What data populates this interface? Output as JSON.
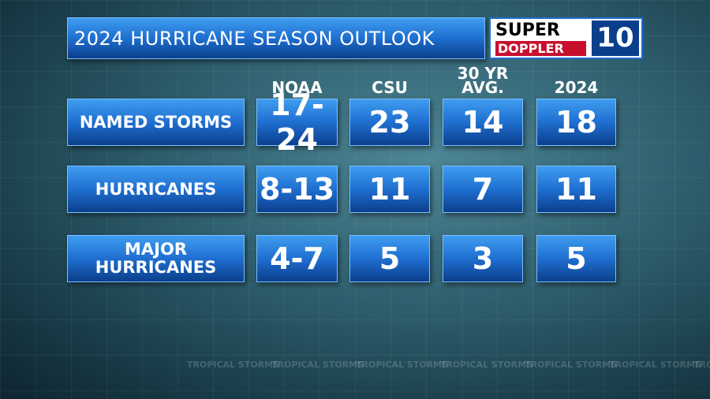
{
  "header": {
    "title": "2024 HURRICANE SEASON OUTLOOK",
    "logo": {
      "line1": "SUPER",
      "line2": "DOPPLER",
      "number": "10"
    }
  },
  "table": {
    "columns": [
      "NOAA",
      "CSU",
      "30 YR AVG.",
      "2024"
    ],
    "rows": [
      {
        "label": "NAMED STORMS",
        "cells": [
          "17-24",
          "23",
          "14",
          "18"
        ]
      },
      {
        "label": "HURRICANES",
        "cells": [
          "8-13",
          "11",
          "7",
          "11"
        ]
      },
      {
        "label": "MAJOR HURRICANES",
        "cells": [
          "4-7",
          "5",
          "3",
          "5"
        ]
      }
    ]
  },
  "watermark": "TROPICAL STORMS"
}
